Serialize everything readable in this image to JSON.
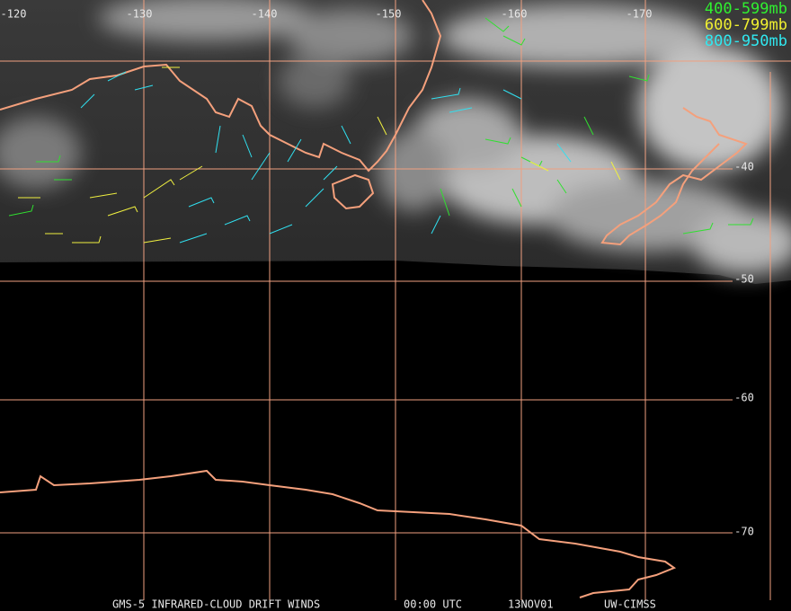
{
  "map": {
    "longitude_labels": [
      "-120",
      "-130",
      "-140",
      "-150",
      "-160",
      "-170"
    ],
    "latitude_labels": [
      "-40",
      "-50",
      "-60",
      "-70"
    ],
    "legend": [
      "400-599mb",
      "600-799mb",
      "800-950mb"
    ],
    "footer": [
      "GMS-5 INFRARED-CLOUD DRIFT WINDS",
      "00:00 UTC",
      "13NOV01",
      "UW-CIMSS"
    ]
  }
}
